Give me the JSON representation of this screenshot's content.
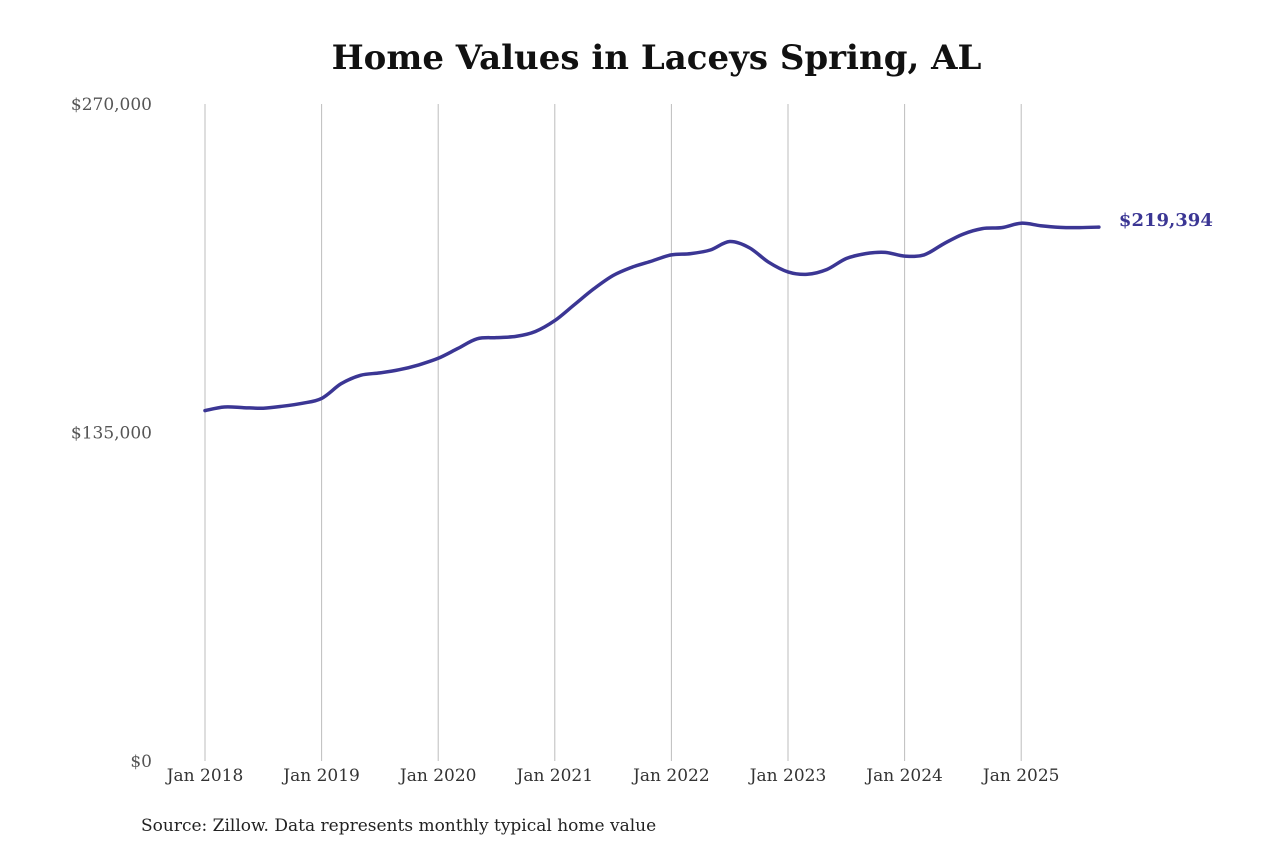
{
  "chart_data": {
    "type": "line",
    "title": "Home Values in Laceys Spring, AL",
    "source": "Source: Zillow. Data represents monthly typical home value",
    "x_ticks": [
      "Jan 2018",
      "Jan 2019",
      "Jan 2020",
      "Jan 2021",
      "Jan 2022",
      "Jan 2023",
      "Jan 2024",
      "Jan 2025"
    ],
    "y_ticks": [
      "$270,000",
      "$135,000",
      "$0"
    ],
    "y_tick_values": [
      270000,
      135000,
      0
    ],
    "ylim": [
      0,
      270000
    ],
    "grid": "vertical",
    "line_color": "#3b3694",
    "end_label": "$219,394",
    "series": [
      {
        "x": [
          "2018-01",
          "2018-03",
          "2018-05",
          "2018-07",
          "2018-09",
          "2018-11",
          "2019-01",
          "2019-03",
          "2019-05",
          "2019-07",
          "2019-09",
          "2019-11",
          "2020-01",
          "2020-03",
          "2020-05",
          "2020-07",
          "2020-09",
          "2020-11",
          "2021-01",
          "2021-03",
          "2021-05",
          "2021-07",
          "2021-09",
          "2021-11",
          "2022-01",
          "2022-03",
          "2022-05",
          "2022-07",
          "2022-09",
          "2022-11",
          "2023-01",
          "2023-03",
          "2023-05",
          "2023-07",
          "2023-09",
          "2023-11",
          "2024-01",
          "2024-03",
          "2024-05",
          "2024-07",
          "2024-09",
          "2024-11",
          "2025-01",
          "2025-03",
          "2025-05",
          "2025-07",
          "2025-09"
        ],
        "values": [
          144000,
          145500,
          145200,
          145000,
          145800,
          147000,
          149000,
          155000,
          158500,
          159500,
          160800,
          162800,
          165500,
          169500,
          173500,
          174000,
          174500,
          176500,
          181000,
          187500,
          194000,
          199500,
          203000,
          205500,
          208000,
          208500,
          210000,
          213500,
          211000,
          205000,
          201000,
          200000,
          202000,
          206500,
          208500,
          209000,
          207500,
          208000,
          212500,
          216500,
          218800,
          219200,
          221000,
          220000,
          219300,
          219200,
          219394
        ]
      }
    ]
  }
}
